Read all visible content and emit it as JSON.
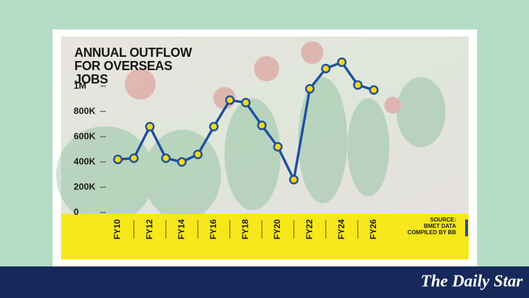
{
  "chart_data": {
    "type": "line",
    "title": "ANNUAL OUTFLOW FOR OVERSEAS JOBS",
    "categories": [
      "FY10",
      null,
      "FY12",
      null,
      "FY14",
      null,
      "FY16",
      null,
      "FY18",
      null,
      "FY20",
      null,
      "FY22",
      null,
      "FY24",
      null,
      "FY26"
    ],
    "series": [
      {
        "name": "Annual outflow",
        "color": "#1f4f9f",
        "values": [
          420000,
          430000,
          680000,
          430000,
          400000,
          460000,
          680000,
          890000,
          870000,
          690000,
          520000,
          260000,
          980000,
          1140000,
          1190000,
          1010000,
          970000
        ]
      }
    ],
    "marker_color": "#f3d90f",
    "ylim": [
      0,
      1000000
    ],
    "yticks": [
      0,
      {
        "value": 200000,
        "label": "200K"
      },
      {
        "value": 400000,
        "label": "400K"
      },
      {
        "value": 600000,
        "label": "600K"
      },
      {
        "value": 800000,
        "label": "800K"
      },
      {
        "value": 1000000,
        "label": "1M"
      }
    ],
    "source": [
      "SOURCE:",
      "BMET DATA",
      "COMPILED BY BB"
    ]
  },
  "brand": "The Daily Star"
}
